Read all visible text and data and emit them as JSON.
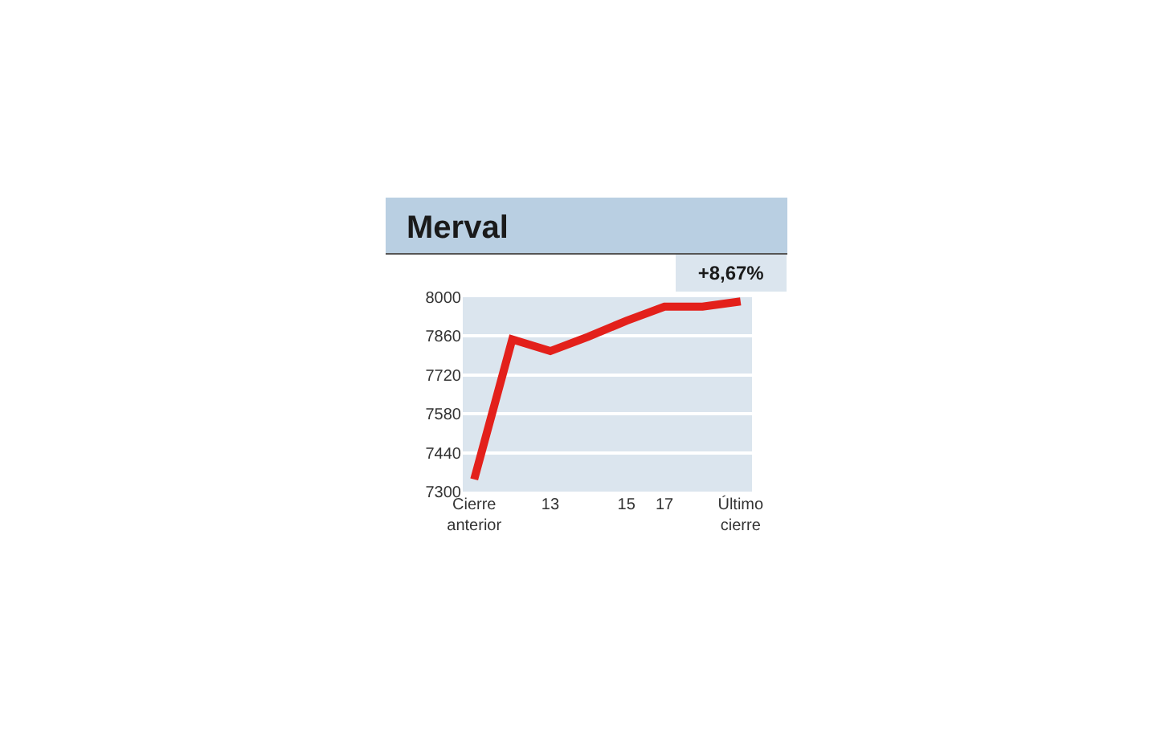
{
  "chart_data": {
    "type": "line",
    "title": "Merval",
    "categories": [
      "Cierre anterior",
      null,
      "13",
      null,
      "15",
      "17",
      null,
      "Último cierre"
    ],
    "series": [
      {
        "color": "#e3201b",
        "values": [
          7344,
          7848,
          7806,
          7858,
          7915,
          7966,
          7966,
          7985
        ]
      }
    ],
    "annotations": [
      "+8,67%"
    ],
    "ylim": [
      7300,
      8000
    ],
    "yticks": [
      7300,
      7440,
      7580,
      7720,
      7860,
      8000
    ],
    "grid": "y",
    "marker": "none",
    "line_style": "solid"
  }
}
